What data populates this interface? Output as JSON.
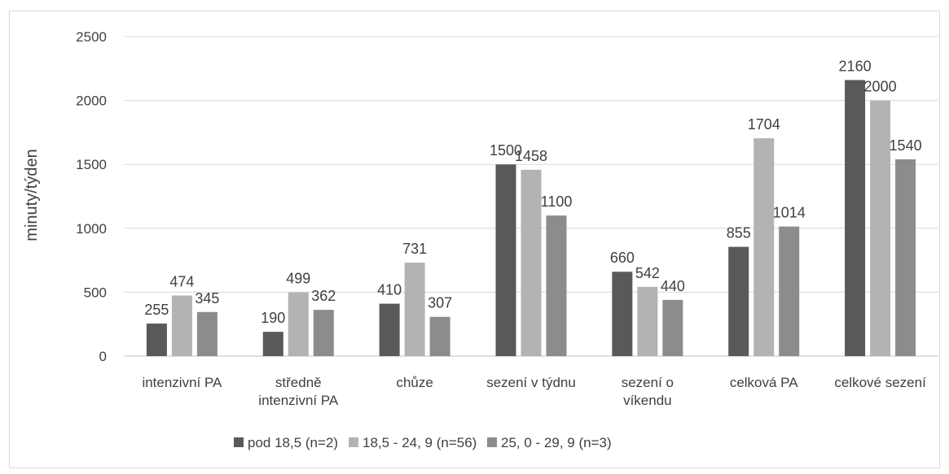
{
  "chart_data": {
    "type": "bar",
    "title": "",
    "xlabel": "",
    "ylabel": "minuty/týden",
    "ylim": [
      0,
      2500
    ],
    "yticks": [
      0,
      500,
      1000,
      1500,
      2000,
      2500
    ],
    "grid": true,
    "legend_position": "bottom",
    "categories": [
      [
        "intenzivní PA"
      ],
      [
        "středně",
        "intenzivní PA"
      ],
      [
        "chůze"
      ],
      [
        "sezení v týdnu"
      ],
      [
        "sezení o",
        "víkendu"
      ],
      [
        "celková PA"
      ],
      [
        "celkové sezení"
      ]
    ],
    "series": [
      {
        "name": "pod 18,5 (n=2)",
        "color": "#595959",
        "values": [
          255,
          190,
          410,
          1500,
          660,
          855,
          2160
        ]
      },
      {
        "name": "18,5 - 24, 9 (n=56)",
        "color": "#b3b3b3",
        "values": [
          474,
          499,
          731,
          1458,
          542,
          1704,
          2000
        ]
      },
      {
        "name": "25, 0 - 29, 9 (n=3)",
        "color": "#8c8c8c",
        "values": [
          345,
          362,
          307,
          1100,
          440,
          1014,
          1540
        ]
      }
    ]
  }
}
